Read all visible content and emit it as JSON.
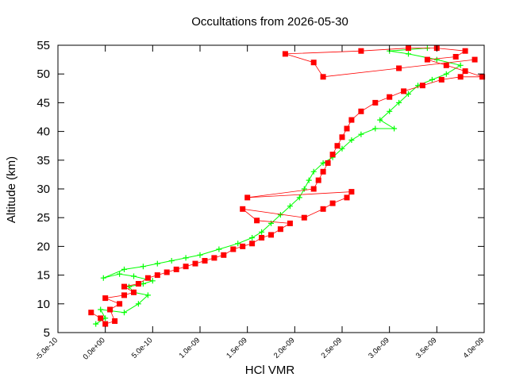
{
  "chart_data": {
    "type": "scatter",
    "title": "Occultations from 2026-05-30",
    "xlabel": "HCl VMR",
    "ylabel": "Altitude (km)",
    "xlim": [
      -5e-10,
      4e-09
    ],
    "ylim": [
      5,
      55
    ],
    "x_ticks": [
      -5e-10,
      0,
      5e-10,
      1e-09,
      1.5e-09,
      2e-09,
      2.5e-09,
      3e-09,
      3.5e-09,
      4e-09
    ],
    "x_tick_labels": [
      "-5.0e-10",
      "0.0e+00",
      "5.0e-10",
      "1.0e-09",
      "1.5e-09",
      "2.0e-09",
      "2.5e-09",
      "3.0e-09",
      "3.5e-09",
      "4.0e-09"
    ],
    "y_ticks": [
      5,
      10,
      15,
      20,
      25,
      30,
      35,
      40,
      45,
      50,
      55
    ],
    "y_tick_labels": [
      "5",
      "10",
      "15",
      "20",
      "25",
      "30",
      "35",
      "40",
      "45",
      "50",
      "55"
    ],
    "grid": false,
    "legend": "none",
    "series": [
      {
        "marker": "plus",
        "color": "#00ff00",
        "points": [
          [
            -1e-10,
            6.5
          ],
          [
            0.0,
            7.5
          ],
          [
            -5e-11,
            9.0
          ],
          [
            2e-10,
            8.5
          ],
          [
            3.5e-10,
            10.0
          ],
          [
            4.5e-10,
            11.5
          ],
          [
            3e-10,
            12.0
          ],
          [
            2.5e-10,
            13.0
          ],
          [
            4e-10,
            13.5
          ],
          [
            5e-10,
            14.0
          ],
          [
            3e-10,
            14.8
          ],
          [
            1.5e-10,
            15.2
          ],
          [
            -2e-11,
            14.5
          ],
          [
            2e-10,
            16.0
          ],
          [
            4e-10,
            16.5
          ],
          [
            5.5e-10,
            17.0
          ],
          [
            7e-10,
            17.5
          ],
          [
            8.5e-10,
            18.0
          ],
          [
            1e-09,
            18.5
          ],
          [
            1.2e-09,
            19.5
          ],
          [
            1.4e-09,
            20.5
          ],
          [
            1.55e-09,
            21.5
          ],
          [
            1.65e-09,
            22.5
          ],
          [
            1.75e-09,
            24.0
          ],
          [
            1.85e-09,
            25.5
          ],
          [
            1.95e-09,
            27.0
          ],
          [
            2.05e-09,
            28.5
          ],
          [
            2.1e-09,
            30.0
          ],
          [
            2.15e-09,
            31.5
          ],
          [
            2.2e-09,
            33.0
          ],
          [
            2.3e-09,
            34.5
          ],
          [
            2.4e-09,
            35.5
          ],
          [
            2.5e-09,
            37.0
          ],
          [
            2.6e-09,
            38.5
          ],
          [
            2.7e-09,
            39.5
          ],
          [
            2.85e-09,
            40.5
          ],
          [
            3.05e-09,
            40.5
          ],
          [
            2.9e-09,
            42.0
          ],
          [
            3e-09,
            43.5
          ],
          [
            3.1e-09,
            45.0
          ],
          [
            3.2e-09,
            46.5
          ],
          [
            3.3e-09,
            48.0
          ],
          [
            3.45e-09,
            49.0
          ],
          [
            3.6e-09,
            50.0
          ],
          [
            3.75e-09,
            51.5
          ],
          [
            3.5e-09,
            52.5
          ],
          [
            3.2e-09,
            53.5
          ],
          [
            3e-09,
            54.0
          ],
          [
            3.4e-09,
            54.5
          ]
        ]
      },
      {
        "marker": "square",
        "color": "#ff0000",
        "points": [
          [
            -1.5e-10,
            8.5
          ],
          [
            -5e-11,
            7.5
          ],
          [
            0.0,
            6.5
          ],
          [
            1e-10,
            7.0
          ],
          [
            5e-11,
            9.0
          ],
          [
            1.5e-10,
            10.0
          ],
          [
            0.0,
            11.0
          ],
          [
            2e-10,
            11.5
          ],
          [
            3e-10,
            12.0
          ],
          [
            2e-10,
            13.0
          ],
          [
            3.5e-10,
            13.5
          ],
          [
            4.5e-10,
            14.5
          ],
          [
            5.5e-10,
            15.0
          ],
          [
            6.5e-10,
            15.5
          ],
          [
            7.5e-10,
            16.0
          ],
          [
            8.5e-10,
            16.5
          ],
          [
            9.5e-10,
            17.0
          ],
          [
            1.05e-09,
            17.5
          ],
          [
            1.15e-09,
            18.0
          ],
          [
            1.25e-09,
            18.5
          ],
          [
            1.35e-09,
            19.5
          ],
          [
            1.45e-09,
            20.0
          ],
          [
            1.55e-09,
            20.5
          ],
          [
            1.65e-09,
            21.5
          ],
          [
            1.75e-09,
            22.0
          ],
          [
            1.85e-09,
            23.0
          ],
          [
            1.95e-09,
            24.0
          ],
          [
            1.6e-09,
            24.5
          ],
          [
            1.45e-09,
            26.5
          ],
          [
            2.1e-09,
            25.0
          ],
          [
            2.3e-09,
            26.5
          ],
          [
            2.4e-09,
            27.5
          ],
          [
            2.55e-09,
            28.5
          ],
          [
            2.6e-09,
            29.5
          ],
          [
            1.5e-09,
            28.5
          ],
          [
            2.2e-09,
            30.0
          ],
          [
            2.25e-09,
            31.5
          ],
          [
            2.3e-09,
            33.0
          ],
          [
            2.35e-09,
            34.5
          ],
          [
            2.4e-09,
            36.0
          ],
          [
            2.45e-09,
            37.5
          ],
          [
            2.5e-09,
            39.0
          ],
          [
            2.55e-09,
            40.5
          ],
          [
            2.6e-09,
            42.0
          ],
          [
            2.7e-09,
            43.5
          ],
          [
            2.85e-09,
            45.0
          ],
          [
            3e-09,
            46.0
          ],
          [
            3.15e-09,
            47.0
          ],
          [
            3.35e-09,
            48.0
          ],
          [
            3.55e-09,
            49.0
          ],
          [
            3.75e-09,
            49.5
          ],
          [
            3.98e-09,
            49.5
          ],
          [
            3.8e-09,
            50.5
          ],
          [
            3.6e-09,
            51.5
          ],
          [
            3.4e-09,
            52.5
          ],
          [
            3.7e-09,
            53.0
          ],
          [
            3.8e-09,
            54.0
          ],
          [
            3.5e-09,
            54.5
          ],
          [
            3.2e-09,
            54.5
          ],
          [
            2.7e-09,
            54.0
          ],
          [
            1.9e-09,
            53.5
          ],
          [
            2.2e-09,
            52.0
          ],
          [
            2.3e-09,
            49.5
          ],
          [
            3.1e-09,
            51.0
          ],
          [
            3.9e-09,
            52.5
          ]
        ]
      }
    ]
  }
}
